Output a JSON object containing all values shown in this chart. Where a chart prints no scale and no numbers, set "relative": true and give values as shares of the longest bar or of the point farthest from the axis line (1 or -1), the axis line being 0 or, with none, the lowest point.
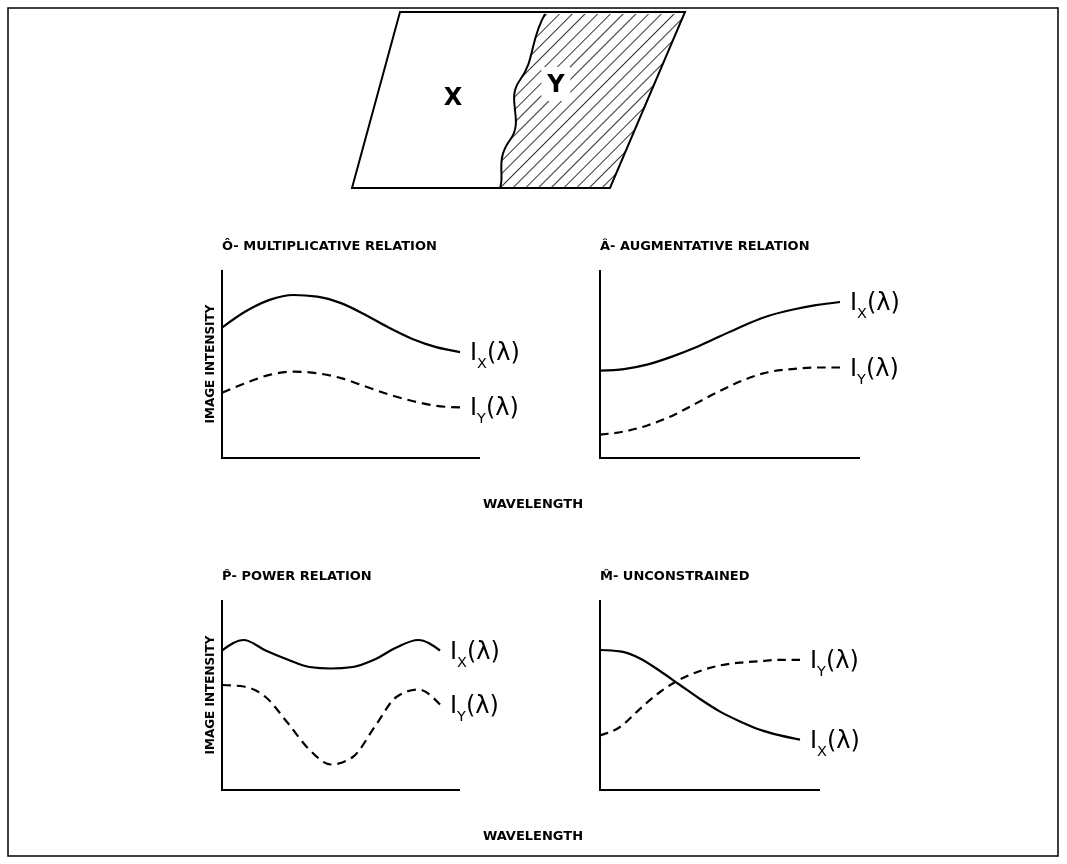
{
  "chart_data": [
    {
      "type": "other",
      "annotations": [
        "X",
        "Y"
      ]
    },
    {
      "type": "line",
      "title": "Ô- MULTIPLICATIVE RELATION",
      "ylabel": "IMAGE INTENSITY",
      "xlabel": "WAVELENGTH",
      "relative": true,
      "legend": false,
      "categories": [
        null,
        null,
        null,
        null,
        null,
        null,
        null,
        null,
        null,
        null,
        null
      ],
      "series": [
        {
          "name": "I$_{X}$(λ)",
          "color": "#000000",
          "line_style": "solid",
          "values": [
            0.8,
            0.9,
            0.97,
            1.0,
            0.99,
            0.95,
            0.88,
            0.8,
            0.73,
            0.68,
            0.65
          ]
        },
        {
          "name": "I$_{Y}$(λ)",
          "color": "#000000",
          "line_style": "dashed",
          "values": [
            0.4,
            0.46,
            0.51,
            0.53,
            0.52,
            0.49,
            0.44,
            0.39,
            0.35,
            0.32,
            0.31
          ]
        }
      ]
    },
    {
      "type": "line",
      "title": "Â- AUGMENTATIVE RELATION",
      "relative": true,
      "legend": false,
      "categories": [
        null,
        null,
        null,
        null,
        null,
        null,
        null,
        null,
        null,
        null,
        null
      ],
      "series": [
        {
          "name": "I$_{X}$(λ)",
          "color": "#000000",
          "line_style": "solid",
          "values": [
            0.56,
            0.57,
            0.6,
            0.65,
            0.71,
            0.78,
            0.85,
            0.91,
            0.95,
            0.98,
            1.0
          ]
        },
        {
          "name": "I$_{Y}$(λ)",
          "color": "#000000",
          "line_style": "dashed",
          "values": [
            0.15,
            0.17,
            0.21,
            0.27,
            0.35,
            0.43,
            0.5,
            0.55,
            0.57,
            0.58,
            0.58
          ]
        }
      ]
    },
    {
      "type": "line",
      "title": "P̂- POWER RELATION",
      "ylabel": "IMAGE INTENSITY",
      "xlabel": "WAVELENGTH",
      "relative": true,
      "legend": false,
      "categories": [
        null,
        null,
        null,
        null,
        null,
        null,
        null,
        null,
        null,
        null,
        null
      ],
      "series": [
        {
          "name": "I$_{X}$(λ)",
          "color": "#000000",
          "line_style": "solid",
          "values": [
            0.93,
            1.0,
            0.93,
            0.87,
            0.82,
            0.81,
            0.82,
            0.87,
            0.95,
            1.0,
            0.93
          ]
        },
        {
          "name": "I$_{Y}$(λ)",
          "color": "#000000",
          "line_style": "dashed",
          "values": [
            0.7,
            0.69,
            0.62,
            0.45,
            0.27,
            0.17,
            0.22,
            0.42,
            0.62,
            0.67,
            0.57
          ]
        }
      ]
    },
    {
      "type": "line",
      "title": "M̂- UNCONSTRAINED",
      "relative": true,
      "legend": false,
      "categories": [
        null,
        null,
        null,
        null,
        null,
        null,
        null,
        null,
        null,
        null,
        null
      ],
      "series": [
        {
          "name": "I$_{X}$(λ)",
          "color": "#000000",
          "line_style": "solid",
          "values": [
            1.0,
            0.99,
            0.94,
            0.85,
            0.75,
            0.65,
            0.56,
            0.49,
            0.43,
            0.39,
            0.36
          ]
        },
        {
          "name": "I$_{Y}$(λ)",
          "color": "#000000",
          "line_style": "dashed",
          "values": [
            0.39,
            0.45,
            0.58,
            0.7,
            0.79,
            0.85,
            0.89,
            0.91,
            0.92,
            0.93,
            0.93
          ]
        }
      ]
    }
  ]
}
